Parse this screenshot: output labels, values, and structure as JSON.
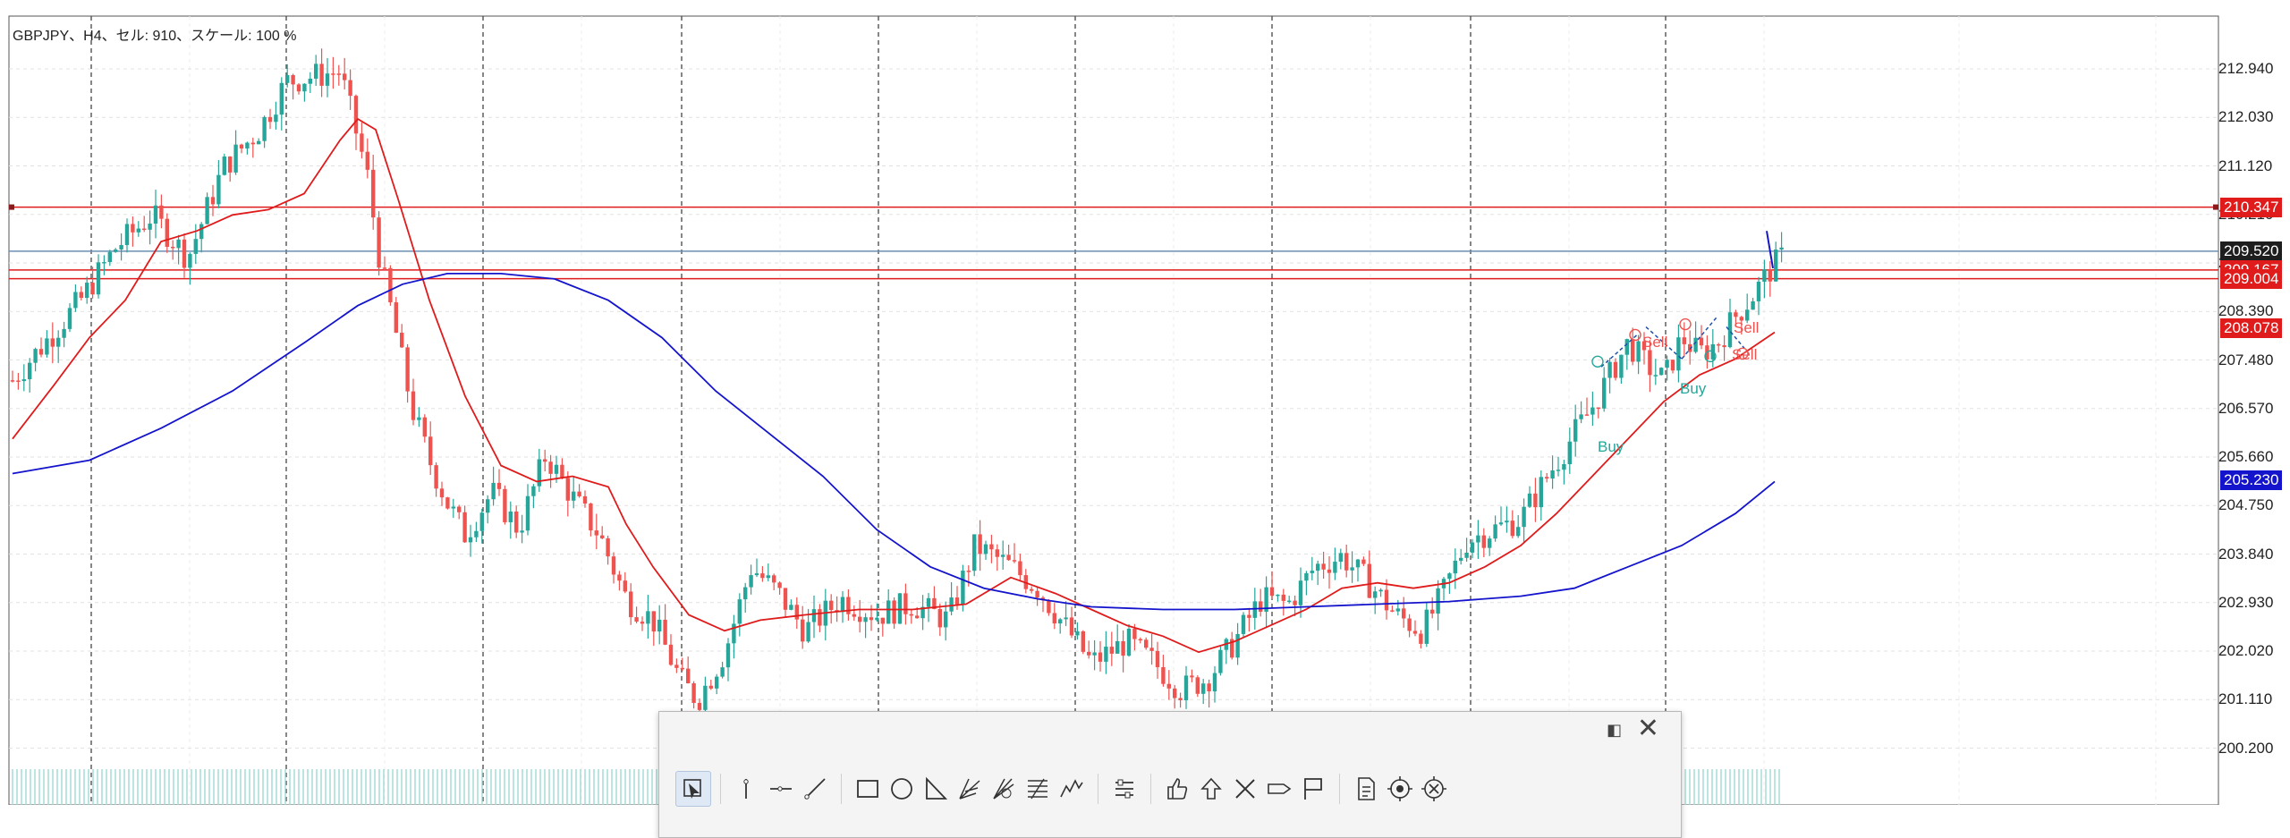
{
  "chart_info": "GBPJPY、H4、セル: 910、スケール: 100 %",
  "price_axis": {
    "ticks": [
      "212.940",
      "212.030",
      "211.120",
      "210.210",
      "209.300",
      "208.390",
      "207.480",
      "206.570",
      "205.660",
      "204.750",
      "203.840",
      "202.930",
      "202.020",
      "201.110",
      "200.200"
    ],
    "tags": [
      {
        "label": "210.347",
        "color": "#e01b1b",
        "price": 210.347
      },
      {
        "label": "209.520",
        "color": "#1e1e1e",
        "price": 209.52
      },
      {
        "label": "209.167",
        "color": "#e01b1b",
        "price": 209.167
      },
      {
        "label": "209.004",
        "color": "#e01b1b",
        "price": 209.004
      },
      {
        "label": "208.078",
        "color": "#e01b1b",
        "price": 208.078
      },
      {
        "label": "205.230",
        "color": "#1414cc",
        "price": 205.23
      }
    ]
  },
  "trade_labels": [
    "Buy",
    "Sell",
    "Sell",
    "Buy",
    "Sell"
  ],
  "colors": {
    "bull": "#26a69a",
    "bear": "#ef5350",
    "ma_fast": "#e01b1b",
    "ma_slow": "#1414cc",
    "hline": "#e01b1b",
    "bid_line": "#6a8fb5"
  },
  "toolbar": {
    "icons": [
      "cursor-select-icon",
      "vertical-line-icon",
      "horizontal-line-icon",
      "trend-line-icon",
      "rectangle-icon",
      "ellipse-icon",
      "triangle-icon",
      "pitchfork-icon",
      "fibonacci-fan-icon",
      "fibonacci-retracement-icon",
      "elliott-wave-icon",
      "indicator-list-icon",
      "thumb-up-icon",
      "arrow-up-icon",
      "cross-icon",
      "price-label-icon",
      "flag-icon",
      "document-icon",
      "target-icon",
      "close-circle-icon"
    ]
  }
}
